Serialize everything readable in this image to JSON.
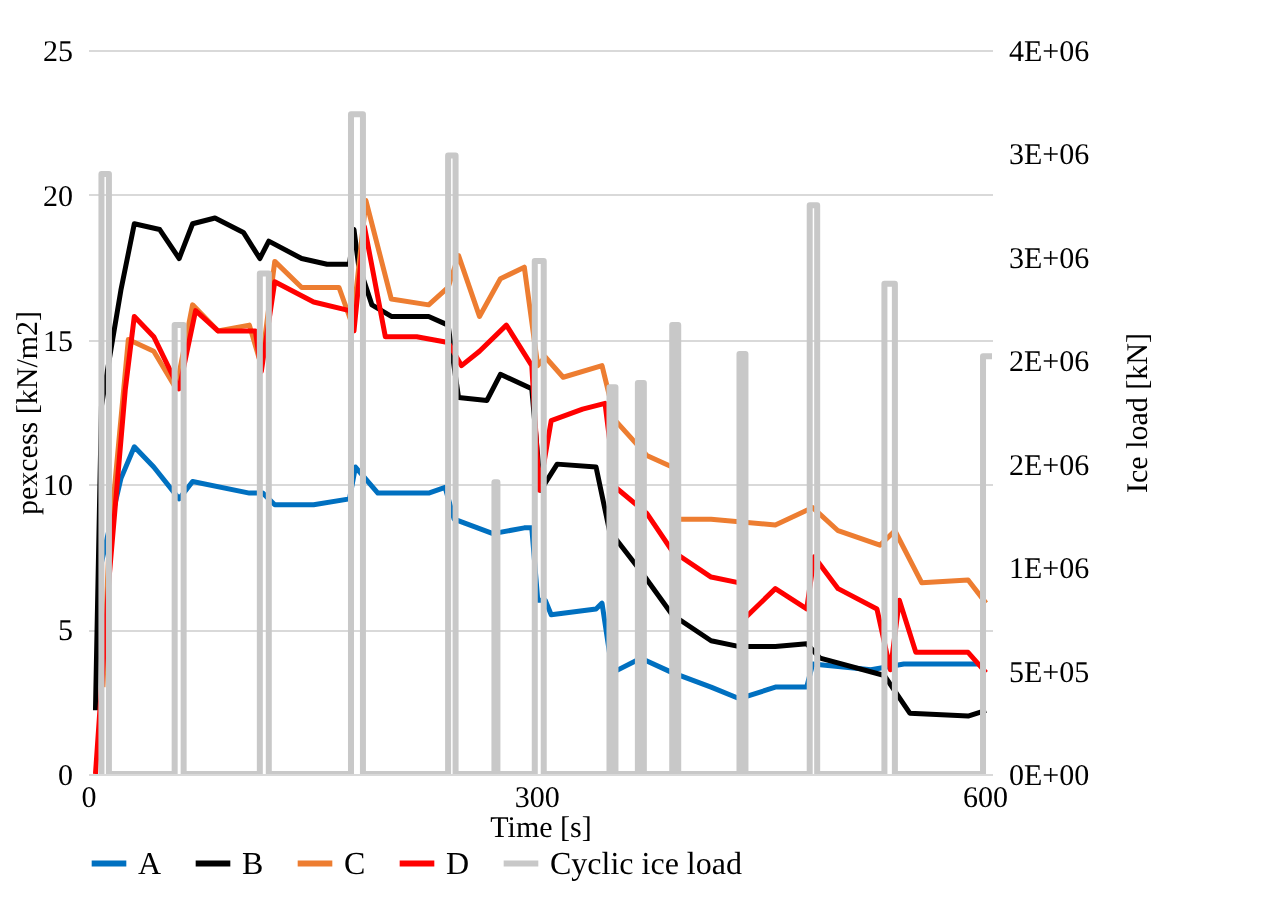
{
  "chart_data": {
    "type": "line",
    "xlabel": "Time [s]",
    "ylabel": "pexcess [kN/m2]",
    "y2label": "Ice load [kN]",
    "xlim": [
      0,
      605
    ],
    "xticks": [
      0,
      300,
      600
    ],
    "ylim": [
      0,
      25
    ],
    "yticks": [
      0,
      5,
      10,
      15,
      20,
      25
    ],
    "y2lim": [
      0,
      3500000
    ],
    "y2ticks": [
      {
        "value": 0,
        "label": "0E+00"
      },
      {
        "value": 500000,
        "label": "5E+05"
      },
      {
        "value": 1000000,
        "label": "1E+06"
      },
      {
        "value": 1500000,
        "label": "2E+06"
      },
      {
        "value": 2000000,
        "label": "2E+06"
      },
      {
        "value": 2500000,
        "label": "3E+06"
      },
      {
        "value": 3000000,
        "label": "3E+06"
      },
      {
        "value": 3500000,
        "label": "4E+06"
      }
    ],
    "grid": "y",
    "legend": "bottom",
    "series": [
      {
        "name": "A",
        "color": "#0070c0",
        "x": [
          9,
          22,
          31,
          44,
          61,
          70,
          108,
          117,
          125,
          151,
          175,
          179,
          194,
          228,
          239,
          245,
          271,
          292,
          297,
          301,
          306,
          310,
          340,
          344,
          351,
          370,
          391,
          417,
          436,
          460,
          481,
          485,
          524,
          546,
          596
        ],
        "values": [
          7.3,
          10.2,
          11.3,
          10.6,
          9.5,
          10.1,
          9.7,
          9.7,
          9.3,
          9.3,
          9.5,
          10.6,
          9.7,
          9.7,
          9.9,
          8.8,
          8.3,
          8.5,
          8.5,
          6.0,
          6.0,
          5.5,
          5.7,
          5.9,
          3.5,
          4.0,
          3.5,
          3.0,
          2.6,
          3.0,
          3.0,
          3.8,
          3.6,
          3.8,
          3.8
        ]
      },
      {
        "name": "B",
        "color": "#000000",
        "x": [
          5,
          9,
          22,
          31,
          48,
          61,
          70,
          85,
          104,
          115,
          121,
          143,
          160,
          175,
          178,
          181,
          190,
          203,
          228,
          241,
          248,
          267,
          276,
          297,
          303,
          314,
          340,
          349,
          370,
          391,
          417,
          436,
          460,
          481,
          490,
          533,
          550,
          589,
          601
        ],
        "values": [
          2.2,
          12.7,
          16.7,
          19.0,
          18.8,
          17.8,
          19.0,
          19.2,
          18.7,
          17.8,
          18.4,
          17.8,
          17.6,
          17.6,
          18.8,
          17.6,
          16.2,
          15.8,
          15.8,
          15.5,
          13.0,
          12.9,
          13.8,
          13.3,
          9.8,
          10.7,
          10.6,
          8.4,
          7.0,
          5.5,
          4.6,
          4.4,
          4.4,
          4.5,
          4.0,
          3.4,
          2.1,
          2.0,
          2.2
        ]
      },
      {
        "name": "C",
        "color": "#ed7d31",
        "x": [
          10,
          14,
          27,
          44,
          59,
          70,
          87,
          108,
          116,
          125,
          143,
          168,
          177,
          186,
          203,
          228,
          241,
          248,
          262,
          276,
          292,
          301,
          306,
          318,
          344,
          353,
          374,
          391,
          395,
          417,
          460,
          485,
          502,
          530,
          540,
          558,
          589,
          601
        ],
        "values": [
          3.0,
          7.8,
          15.0,
          14.6,
          13.3,
          16.2,
          15.3,
          15.5,
          14.1,
          17.7,
          16.8,
          16.8,
          15.5,
          19.8,
          16.4,
          16.2,
          16.8,
          17.9,
          15.8,
          17.1,
          17.5,
          14.1,
          14.4,
          13.7,
          14.1,
          12.2,
          11.0,
          10.6,
          8.8,
          8.8,
          8.6,
          9.2,
          8.4,
          7.9,
          8.4,
          6.6,
          6.7,
          5.9
        ]
      },
      {
        "name": "D",
        "color": "#ff0000",
        "x": [
          5,
          14,
          25,
          31,
          44,
          61,
          72,
          87,
          112,
          116,
          125,
          151,
          175,
          178,
          185,
          199,
          220,
          241,
          250,
          262,
          280,
          297,
          302,
          310,
          331,
          346,
          353,
          374,
          391,
          417,
          436,
          438,
          460,
          481,
          486,
          502,
          528,
          537,
          543,
          554,
          589,
          601
        ],
        "values": [
          0,
          6.7,
          13.3,
          15.8,
          15.1,
          13.3,
          16.0,
          15.3,
          15.3,
          13.9,
          17.0,
          16.3,
          16.0,
          15.3,
          18.9,
          15.1,
          15.1,
          14.9,
          14.1,
          14.6,
          15.5,
          14.1,
          9.8,
          12.2,
          12.6,
          12.8,
          9.9,
          9.0,
          7.7,
          6.8,
          6.6,
          5.3,
          6.4,
          5.7,
          7.5,
          6.4,
          5.7,
          3.6,
          6.0,
          4.2,
          4.2,
          3.5
        ]
      },
      {
        "name": "Cyclic ice load",
        "color": "#c8c8c8",
        "axis": "y2",
        "x": [
          8,
          9,
          9,
          14,
          14,
          58,
          58,
          64,
          64,
          115,
          115,
          121,
          121,
          176,
          176,
          184,
          184,
          241,
          241,
          246,
          246,
          272,
          272,
          274,
          274,
          299,
          299,
          305,
          305,
          349,
          349,
          353,
          353,
          368,
          368,
          372,
          372,
          391,
          391,
          395,
          395,
          436,
          436,
          440,
          440,
          483,
          483,
          488,
          488,
          533,
          533,
          540,
          540,
          599,
          599,
          605
        ],
        "values": [
          0,
          0,
          2900000,
          2900000,
          0,
          0,
          2170000,
          2170000,
          0,
          0,
          2420000,
          2420000,
          0,
          0,
          3190000,
          3190000,
          0,
          0,
          2990000,
          2990000,
          0,
          0,
          1410000,
          1410000,
          0,
          0,
          2480000,
          2480000,
          0,
          0,
          1870000,
          1870000,
          0,
          0,
          1890000,
          1890000,
          0,
          0,
          2170000,
          2170000,
          0,
          0,
          2030000,
          2030000,
          0,
          0,
          2750000,
          2750000,
          0,
          0,
          2370000,
          2370000,
          0,
          0,
          2020000,
          2020000
        ]
      }
    ]
  }
}
